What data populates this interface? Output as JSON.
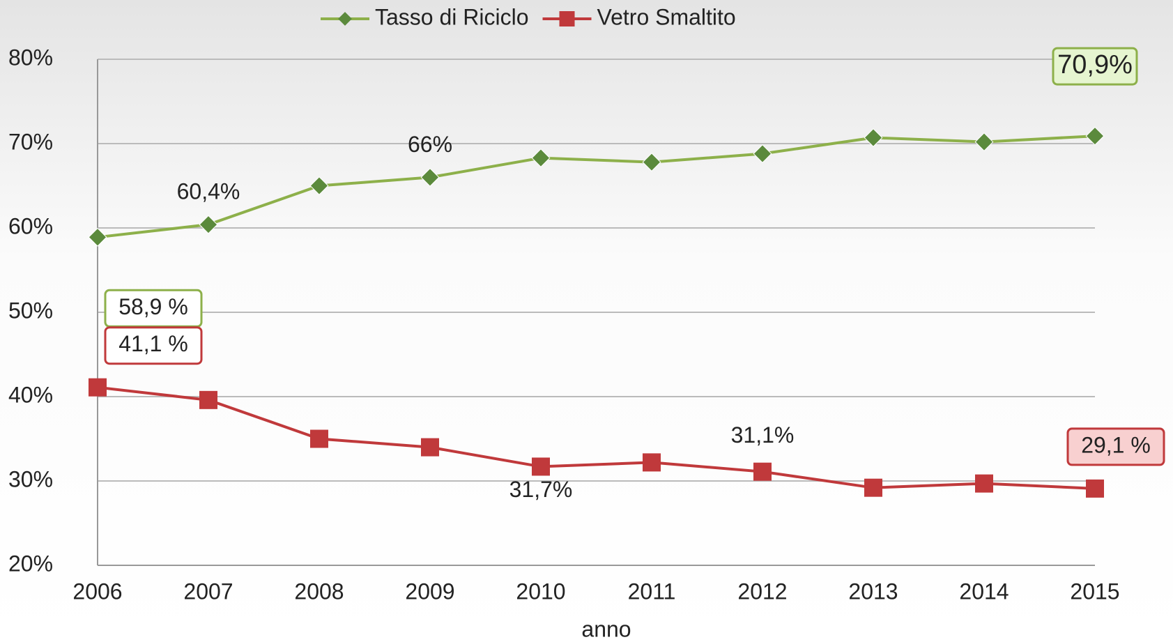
{
  "chart_data": {
    "type": "line",
    "xlabel": "anno",
    "categories": [
      "2006",
      "2007",
      "2008",
      "2009",
      "2010",
      "2011",
      "2012",
      "2013",
      "2014",
      "2015"
    ],
    "series": [
      {
        "name": "Tasso di Riciclo",
        "color": "#8db04a",
        "marker_color": "#5b8a3c",
        "values": [
          58.9,
          60.4,
          65,
          66,
          68.3,
          67.8,
          68.8,
          70.7,
          70.2,
          70.9
        ],
        "value_labels": [
          "58,9 %",
          "60,4%",
          null,
          "66%",
          null,
          null,
          null,
          null,
          null,
          "70,9%"
        ]
      },
      {
        "name": "Vetro Smaltito",
        "color": "#c0393b",
        "marker_color": "#c0393b",
        "values": [
          41.1,
          39.6,
          35,
          34,
          31.7,
          32.2,
          31.1,
          29.2,
          29.7,
          29.1
        ],
        "value_labels": [
          "41,1 %",
          null,
          null,
          null,
          "31,7%",
          null,
          "31,1%",
          null,
          null,
          "29,1 %"
        ]
      }
    ],
    "ylim": [
      20,
      80
    ],
    "yticks": [
      {
        "value": 20,
        "label": "20%"
      },
      {
        "value": 30,
        "label": "30%"
      },
      {
        "value": 40,
        "label": "40%"
      },
      {
        "value": 50,
        "label": "50%"
      },
      {
        "value": 60,
        "label": "60%"
      },
      {
        "value": 70,
        "label": "70%"
      },
      {
        "value": 80,
        "label": "80%"
      }
    ],
    "grid": true,
    "legend": "top"
  }
}
